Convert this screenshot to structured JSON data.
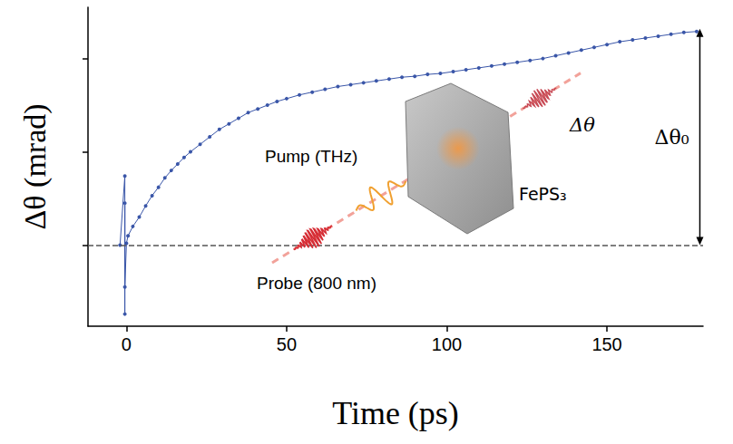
{
  "chart_data": {
    "type": "line",
    "x_label": "Time (ps)",
    "y_label": "Δθ (mrad)",
    "x": [
      -2,
      -0.5,
      -0.5,
      -0.5,
      -0.5,
      0,
      0.5,
      2,
      4,
      6,
      8,
      10,
      12,
      14,
      16,
      18,
      20,
      23,
      26,
      29,
      32,
      35,
      38,
      41,
      44,
      47,
      50,
      54,
      58,
      62,
      66,
      70,
      74,
      78,
      82,
      86,
      90,
      94,
      98,
      102,
      106,
      110,
      114,
      118,
      122,
      126,
      130,
      134,
      138,
      142,
      146,
      150,
      154,
      158,
      162,
      166,
      170,
      174,
      178
    ],
    "values": [
      0,
      0.74,
      -0.74,
      0.45,
      -0.45,
      0.02,
      0.1,
      0.2,
      0.3,
      0.42,
      0.53,
      0.62,
      0.72,
      0.8,
      0.87,
      0.94,
      1.0,
      1.08,
      1.16,
      1.24,
      1.3,
      1.36,
      1.42,
      1.46,
      1.5,
      1.54,
      1.57,
      1.61,
      1.64,
      1.67,
      1.7,
      1.72,
      1.74,
      1.76,
      1.78,
      1.8,
      1.81,
      1.83,
      1.84,
      1.86,
      1.88,
      1.9,
      1.92,
      1.94,
      1.96,
      1.98,
      2.0,
      2.03,
      2.06,
      2.09,
      2.12,
      2.15,
      2.18,
      2.2,
      2.22,
      2.24,
      2.26,
      2.28,
      2.29
    ],
    "color": "#3a56a8",
    "marker": "circle",
    "line_style": "solid",
    "xlim": [
      -12,
      180
    ],
    "xticks": [
      0,
      50,
      100,
      150
    ],
    "ylim": [
      -0.87,
      2.55
    ],
    "yticks": [
      0,
      1,
      2
    ],
    "tick_labels": "x",
    "grid": false,
    "baseline": 0,
    "annotations": [
      {
        "text": "Δθ₀",
        "x": 179,
        "from": 0,
        "to": 2.32
      }
    ],
    "inset": {
      "pump": "Pump (THz)",
      "probe": "Probe (800 nm)",
      "sample": "FePS₃",
      "signal": "Δθ"
    }
  }
}
